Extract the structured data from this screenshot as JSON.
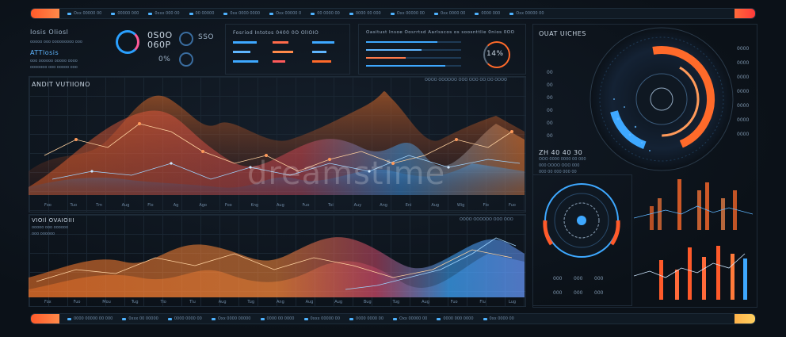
{
  "top_bar": {
    "items": [
      "Oxx 00000 00",
      "00000 000",
      "0xxx 000 00",
      "00 00000",
      "0xx 0000 0000",
      "Oxx 00000 0",
      "00 0000 00",
      "0000 00 000",
      "Oxx 00000 00",
      "0xx 0000 00",
      "0000 000",
      "Oxx 00000 00"
    ]
  },
  "bottom_bar": {
    "items": [
      "0000 00000 00 000",
      "0xxx 00 00000",
      "0000 0000 00",
      "Oxx 0000 00000",
      "0000 00 0000",
      "0xxx 00000 00",
      "0000 0000 00",
      "Oxx 00000 00",
      "0000 000 0000",
      "0xx 0000 00"
    ]
  },
  "header": {
    "title_1": "Iosis Oliosl",
    "title_2": "ATTlosis",
    "big_values": [
      "0S0O",
      "060P",
      "SSO"
    ],
    "pct": "0%",
    "mid_title": "Fosriod Intotos 0400 0O OlIOIO",
    "right_title": "Oasitust Insoe Oosrrtsd Aarlsscos os soosnttlie 0nios 0OO",
    "percent_ring": "14%"
  },
  "upper_chart": {
    "title": "ANDIT VUTIIONO",
    "legend": "OOOO OOOOOO OOO OOO OO OO OOOO",
    "x_labels": [
      "Foo",
      "Tuo",
      "Tm",
      "Aug",
      "Flo",
      "Ag",
      "Ago",
      "Foo",
      "Kng",
      "Aug",
      "Fuo",
      "Toi",
      "Auy",
      "Ang",
      "Eni",
      "Aug",
      "Wig",
      "Flo",
      "Fuo"
    ]
  },
  "lower_chart": {
    "title": "VIOIl OVAIOIII",
    "legend": "OOOO OOOOOO OOO OOO",
    "x_labels": [
      "Fox",
      "Fuo",
      "Mou",
      "Tug",
      "Tio",
      "Tlu",
      "Aug",
      "Tug",
      "Ang",
      "Aug",
      "Aug",
      "Bug",
      "Tug",
      "Aug",
      "Fuo",
      "Flu",
      "Lug"
    ]
  },
  "right_panel": {
    "title": "OUAT UICHES",
    "left_values": [
      "00",
      "00",
      "00",
      "00",
      "00",
      "00"
    ],
    "right_values": [
      "0000",
      "0000",
      "0000",
      "0000",
      "0000",
      "0000",
      "0000"
    ],
    "stats_title": "ZH 40 40 30",
    "stats_lines": [
      "OOO 0000 0000 00 000",
      "000 OOOO OOO 000",
      "000 00 000 000 00"
    ],
    "dial_values": [
      "000",
      "000",
      "000",
      "000",
      "000",
      "000"
    ]
  },
  "colors": {
    "orange": "#ff6a2a",
    "blue": "#3ea8ff",
    "bg": "#0b1118"
  },
  "watermark": "dreamstime"
}
